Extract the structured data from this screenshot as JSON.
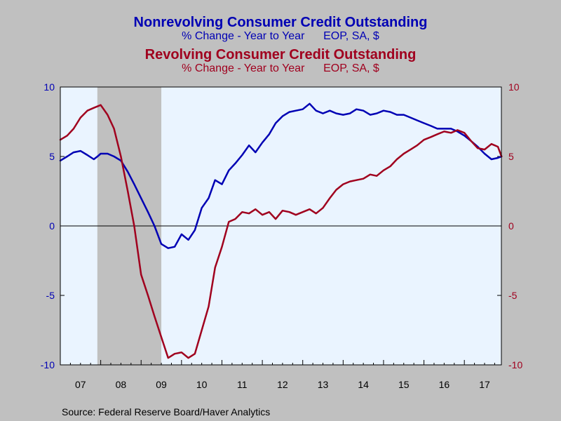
{
  "chart_data": {
    "type": "line",
    "titles": [
      {
        "text": "Nonrevolving Consumer Credit Outstanding",
        "color": "#0000b4"
      },
      {
        "text": "% Change - Year to Year      EOP, SA, $",
        "color": "#0000b4"
      },
      {
        "text": "Revolving Consumer Credit Outstanding",
        "color": "#a0001e"
      },
      {
        "text": "% Change - Year to Year      EOP, SA, $",
        "color": "#a0001e"
      }
    ],
    "source": "Source:  Federal Reserve Board/Haver Analytics",
    "x_range": [
      2007.0,
      2017.9167
    ],
    "x_ticks": [
      {
        "label": "07",
        "year": 2007
      },
      {
        "label": "08",
        "year": 2008
      },
      {
        "label": "09",
        "year": 2009
      },
      {
        "label": "10",
        "year": 2010
      },
      {
        "label": "11",
        "year": 2011
      },
      {
        "label": "12",
        "year": 2012
      },
      {
        "label": "13",
        "year": 2013
      },
      {
        "label": "14",
        "year": 2014
      },
      {
        "label": "15",
        "year": 2015
      },
      {
        "label": "16",
        "year": 2016
      },
      {
        "label": "17",
        "year": 2017
      }
    ],
    "y_left": {
      "min": -10,
      "max": 10,
      "ticks": [
        "10",
        "5",
        "0",
        "-5",
        "-10"
      ],
      "color": "#0000b4"
    },
    "y_right": {
      "min": -10,
      "max": 10,
      "ticks": [
        "10",
        "5",
        "0",
        "-5",
        "-10"
      ],
      "color": "#a0001e"
    },
    "zero_line": true,
    "recession": {
      "start": 2007.917,
      "end": 2009.5,
      "color": "#c0c0c0"
    },
    "plot_background": "#eaf4ff",
    "series": [
      {
        "name": "Nonrevolving Consumer Credit Outstanding",
        "color": "#0000b4",
        "x": [
          2007.0,
          2007.17,
          2007.33,
          2007.5,
          2007.67,
          2007.83,
          2007.92,
          2008.0,
          2008.17,
          2008.33,
          2008.5,
          2008.67,
          2008.83,
          2009.0,
          2009.17,
          2009.33,
          2009.5,
          2009.67,
          2009.83,
          2010.0,
          2010.17,
          2010.33,
          2010.5,
          2010.67,
          2010.83,
          2011.0,
          2011.17,
          2011.33,
          2011.5,
          2011.67,
          2011.83,
          2012.0,
          2012.17,
          2012.33,
          2012.5,
          2012.67,
          2012.83,
          2013.0,
          2013.17,
          2013.33,
          2013.5,
          2013.67,
          2013.83,
          2014.0,
          2014.17,
          2014.33,
          2014.5,
          2014.67,
          2014.83,
          2015.0,
          2015.17,
          2015.33,
          2015.5,
          2015.67,
          2015.83,
          2016.0,
          2016.17,
          2016.33,
          2016.5,
          2016.67,
          2016.83,
          2017.0,
          2017.17,
          2017.33,
          2017.5,
          2017.67,
          2017.83,
          2017.92
        ],
        "values": [
          4.7,
          5.0,
          5.3,
          5.4,
          5.1,
          4.8,
          5.0,
          5.2,
          5.2,
          5.0,
          4.7,
          3.9,
          3.0,
          2.0,
          1.0,
          0.0,
          -1.3,
          -1.6,
          -1.5,
          -0.6,
          -1.0,
          -0.3,
          1.3,
          2.0,
          3.3,
          3.0,
          4.0,
          4.5,
          5.1,
          5.8,
          5.3,
          6.0,
          6.6,
          7.4,
          7.9,
          8.2,
          8.3,
          8.4,
          8.8,
          8.3,
          8.1,
          8.3,
          8.1,
          8.0,
          8.1,
          8.4,
          8.3,
          8.0,
          8.1,
          8.3,
          8.2,
          8.0,
          8.0,
          7.8,
          7.6,
          7.4,
          7.2,
          7.0,
          7.0,
          7.0,
          6.8,
          6.5,
          6.1,
          5.7,
          5.2,
          4.8,
          4.9,
          5.0
        ]
      },
      {
        "name": "Revolving Consumer Credit Outstanding",
        "color": "#a0001e",
        "x": [
          2007.0,
          2007.17,
          2007.33,
          2007.5,
          2007.67,
          2007.83,
          2008.0,
          2008.17,
          2008.33,
          2008.5,
          2008.67,
          2008.83,
          2009.0,
          2009.17,
          2009.33,
          2009.5,
          2009.67,
          2009.83,
          2010.0,
          2010.17,
          2010.33,
          2010.5,
          2010.67,
          2010.83,
          2011.0,
          2011.17,
          2011.33,
          2011.5,
          2011.67,
          2011.83,
          2012.0,
          2012.17,
          2012.33,
          2012.5,
          2012.67,
          2012.83,
          2013.0,
          2013.17,
          2013.33,
          2013.5,
          2013.67,
          2013.83,
          2014.0,
          2014.17,
          2014.33,
          2014.5,
          2014.67,
          2014.83,
          2015.0,
          2015.17,
          2015.33,
          2015.5,
          2015.67,
          2015.83,
          2016.0,
          2016.17,
          2016.33,
          2016.5,
          2016.67,
          2016.83,
          2017.0,
          2017.17,
          2017.33,
          2017.5,
          2017.67,
          2017.83,
          2017.92
        ],
        "values": [
          6.2,
          6.5,
          7.0,
          7.8,
          8.3,
          8.5,
          8.7,
          8.0,
          7.0,
          5.0,
          2.5,
          0.0,
          -3.5,
          -5.0,
          -6.5,
          -8.0,
          -9.5,
          -9.2,
          -9.1,
          -9.5,
          -9.2,
          -7.5,
          -5.8,
          -3.0,
          -1.5,
          0.3,
          0.5,
          1.0,
          0.9,
          1.2,
          0.8,
          1.0,
          0.5,
          1.1,
          1.0,
          0.8,
          1.0,
          1.2,
          0.9,
          1.3,
          2.0,
          2.6,
          3.0,
          3.2,
          3.3,
          3.4,
          3.7,
          3.6,
          4.0,
          4.3,
          4.8,
          5.2,
          5.5,
          5.8,
          6.2,
          6.4,
          6.6,
          6.8,
          6.7,
          6.9,
          6.7,
          6.1,
          5.6,
          5.5,
          5.9,
          5.7,
          5.0
        ]
      }
    ]
  }
}
